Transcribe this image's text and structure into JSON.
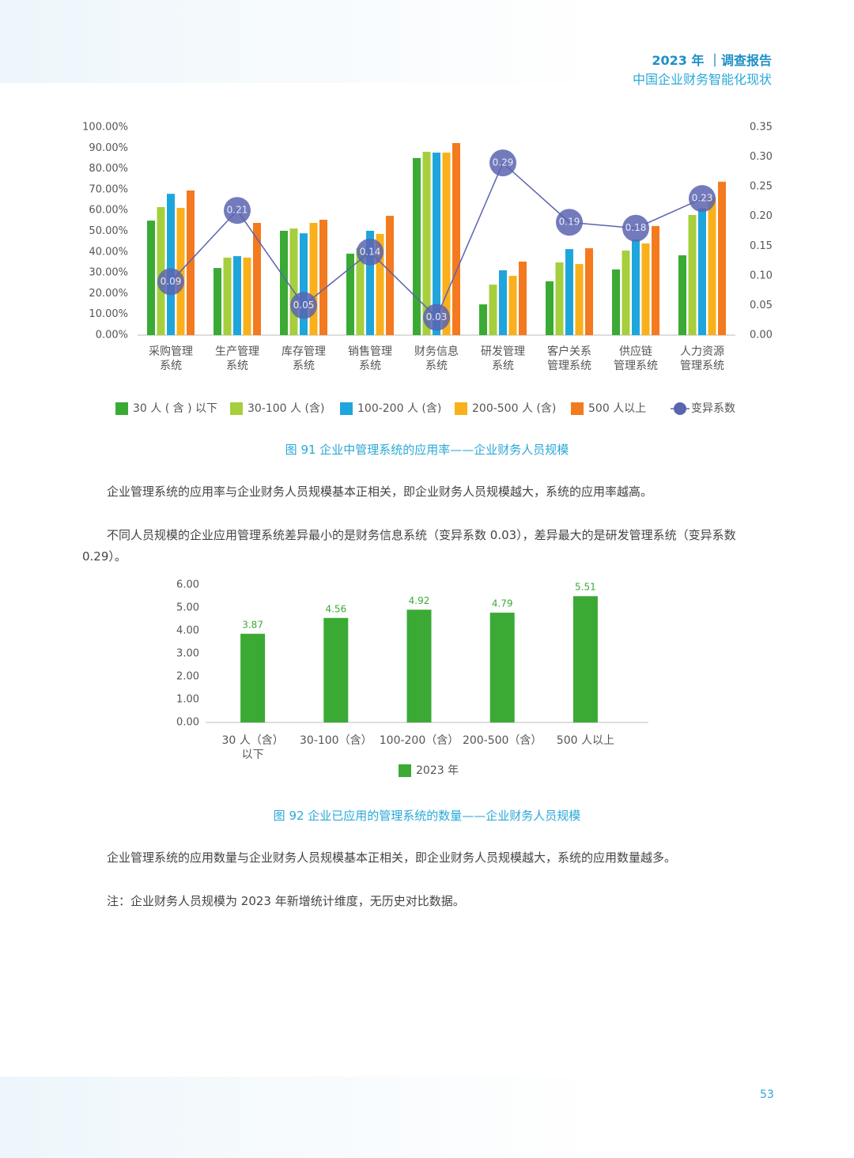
{
  "header": {
    "title": "2023 年 ｜调查报告",
    "subtitle": "中国企业财务智能化现状"
  },
  "chart_data": [
    {
      "type": "bar",
      "caption": "图 91 企业中管理系统的应用率——企业财务人员规模",
      "categories": [
        "采购管理\n系统",
        "生产管理\n系统",
        "库存管理\n系统",
        "销售管理\n系统",
        "财务信息\n系统",
        "研发管理\n系统",
        "客户关系\n管理系统",
        "供应链\n管理系统",
        "人力资源\n管理系统"
      ],
      "series": [
        {
          "name": "30 人 ( 含 ) 以下",
          "color": "#3aaa35",
          "values": [
            55.1,
            32.3,
            50.2,
            39.2,
            85.2,
            14.8,
            25.9,
            31.6,
            38.4
          ]
        },
        {
          "name": "30-100 人 (含)",
          "color": "#a5cf3c",
          "values": [
            61.6,
            37.3,
            51.3,
            42,
            88.2,
            24.3,
            35,
            40.7,
            57.8
          ]
        },
        {
          "name": "100-200 人 (含)",
          "color": "#1ea6dc",
          "values": [
            68,
            38,
            49,
            50.2,
            87.8,
            31.2,
            41.4,
            46,
            61
          ]
        },
        {
          "name": "200-500 人 (含)",
          "color": "#f9b01a",
          "values": [
            61.2,
            37.3,
            54,
            48.7,
            87.8,
            28.5,
            34.2,
            44.1,
            66
          ]
        },
        {
          "name": "500 人以上",
          "color": "#f47a20",
          "values": [
            69.6,
            54,
            55.5,
            57.4,
            92.4,
            35.4,
            41.8,
            52.5,
            73.8
          ]
        },
        {
          "name": "变异系数",
          "color": "#5a64b0",
          "type": "line",
          "axis": "y2",
          "values": [
            0.09,
            0.21,
            0.05,
            0.14,
            0.03,
            0.29,
            0.19,
            0.18,
            0.23
          ]
        }
      ],
      "ylim": [
        0,
        100
      ],
      "yticks": [
        {
          "value": 0,
          "label": "0.00%"
        },
        {
          "value": 10,
          "label": "10.00%"
        },
        {
          "value": 20,
          "label": "20.00%"
        },
        {
          "value": 30,
          "label": "30.00%"
        },
        {
          "value": 40,
          "label": "40.00%"
        },
        {
          "value": 50,
          "label": "50.00%"
        },
        {
          "value": 60,
          "label": "60.00%"
        },
        {
          "value": 70,
          "label": "70.00%"
        },
        {
          "value": 80,
          "label": "80.00%"
        },
        {
          "value": 90,
          "label": "90.00%"
        },
        {
          "value": 100,
          "label": "100.00%"
        }
      ],
      "y2lim": [
        0,
        0.35
      ],
      "y2ticks": [
        {
          "value": 0,
          "label": "0.00"
        },
        {
          "value": 0.05,
          "label": "0.05"
        },
        {
          "value": 0.1,
          "label": "0.10"
        },
        {
          "value": 0.15,
          "label": "0.15"
        },
        {
          "value": 0.2,
          "label": "0.20"
        },
        {
          "value": 0.25,
          "label": "0.25"
        },
        {
          "value": 0.3,
          "label": "0.30"
        },
        {
          "value": 0.35,
          "label": "0.35"
        }
      ],
      "legend": "bottom"
    },
    {
      "type": "bar",
      "caption": "图 92 企业已应用的管理系统的数量——企业财务人员规模",
      "categories": [
        "30 人（含）\n以下",
        "30-100（含）",
        "100-200（含）",
        "200-500（含）",
        "500 人以上"
      ],
      "series": [
        {
          "name": "2023 年",
          "color": "#3aaa35",
          "values": [
            3.87,
            4.56,
            4.92,
            4.79,
            5.51
          ]
        }
      ],
      "ylim": [
        0,
        6
      ],
      "yticks": [
        {
          "value": 0,
          "label": "0.00"
        },
        {
          "value": 1,
          "label": "1.00"
        },
        {
          "value": 2,
          "label": "2.00"
        },
        {
          "value": 3,
          "label": "3.00"
        },
        {
          "value": 4,
          "label": "4.00"
        },
        {
          "value": 5,
          "label": "5.00"
        },
        {
          "value": 6,
          "label": "6.00"
        }
      ],
      "data_labels": true,
      "legend": "bottom"
    }
  ],
  "paragraphs": [
    "企业管理系统的应用率与企业财务人员规模基本正相关，即企业财务人员规模越大，系统的应用率越高。",
    "不同人员规模的企业应用管理系统差异最小的是财务信息系统（变异系数 0.03），差异最大的是研发管理系统（变异系数 0.29）。",
    "企业管理系统的应用数量与企业财务人员规模基本正相关，即企业财务人员规模越大，系统的应用数量越多。",
    "注：企业财务人员规模为 2023 年新增统计维度，无历史对比数据。"
  ],
  "page_number": "53"
}
